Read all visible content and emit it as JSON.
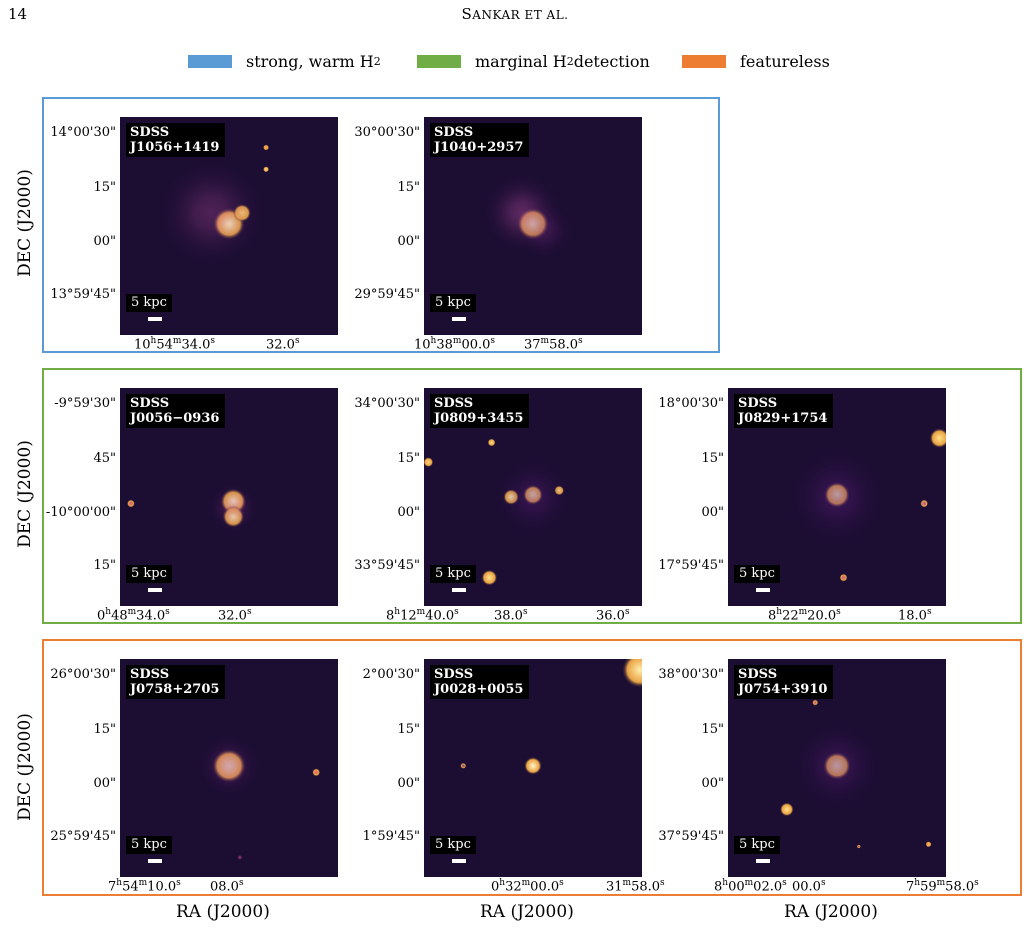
{
  "header": {
    "page_number": "14",
    "running_title_first": "S",
    "running_title_rest": "ANKAR ET AL."
  },
  "legend": [
    {
      "label": "strong, warm H",
      "sub": "2",
      "color": "#5b9bd5"
    },
    {
      "label": "marginal H",
      "sub": "2",
      "label2": " detection",
      "color": "#70ad47"
    },
    {
      "label": "featureless",
      "color": "#ed7d31"
    }
  ],
  "axis_label_y": "DEC (J2000)",
  "axis_label_x": "RA (J2000)",
  "scale_label": "5 kpc",
  "rows": [
    {
      "color": "#5b9bd5",
      "panels": [
        {
          "name": [
            "SDSS",
            "J1056+1419"
          ],
          "dec_ticks": [
            "14°00'30\"",
            "15\"",
            "00\"",
            "13°59'45\""
          ],
          "ra_ticks": [
            "10h54m34.0s",
            "32.0s"
          ]
        },
        {
          "name": [
            "SDSS",
            "J1040+2957"
          ],
          "dec_ticks": [
            "30°00'30\"",
            "15\"",
            "00\"",
            "29°59'45\""
          ],
          "ra_ticks": [
            "10h38m00.0s",
            "37m58.0s"
          ]
        }
      ]
    },
    {
      "color": "#70ad47",
      "panels": [
        {
          "name": [
            "SDSS",
            "J0056−0936"
          ],
          "dec_ticks": [
            "-9°59'30\"",
            "45\"",
            "-10°00'00\"",
            "15\""
          ],
          "ra_ticks": [
            "0h48m34.0s",
            "32.0s"
          ]
        },
        {
          "name": [
            "SDSS",
            "J0809+3455"
          ],
          "dec_ticks": [
            "34°00'30\"",
            "15\"",
            "00\"",
            "33°59'45\""
          ],
          "ra_ticks": [
            "8h12m40.0s",
            "38.0s",
            "36.0s"
          ]
        },
        {
          "name": [
            "SDSS",
            "J0829+1754"
          ],
          "dec_ticks": [
            "18°00'30\"",
            "15\"",
            "00\"",
            "17°59'45\""
          ],
          "ra_ticks": [
            "8h22m20.0s",
            "18.0s"
          ]
        }
      ]
    },
    {
      "color": "#ed7d31",
      "panels": [
        {
          "name": [
            "SDSS",
            "J0758+2705"
          ],
          "dec_ticks": [
            "26°00'30\"",
            "15\"",
            "00\"",
            "25°59'45\""
          ],
          "ra_ticks": [
            "7h54m10.0s",
            "08.0s"
          ]
        },
        {
          "name": [
            "SDSS",
            "J0028+0055"
          ],
          "dec_ticks": [
            "2°00'30\"",
            "15\"",
            "00\"",
            "1°59'45\""
          ],
          "ra_ticks": [
            "0h32m00.0s",
            "31m58.0s"
          ]
        },
        {
          "name": [
            "SDSS",
            "J0754+3910"
          ],
          "dec_ticks": [
            "38°00'30\"",
            "15\"",
            "00\"",
            "37°59'45\""
          ],
          "ra_ticks": [
            "8h00m02.0s",
            "00.0s",
            "7h59m58.0s"
          ]
        }
      ]
    }
  ]
}
